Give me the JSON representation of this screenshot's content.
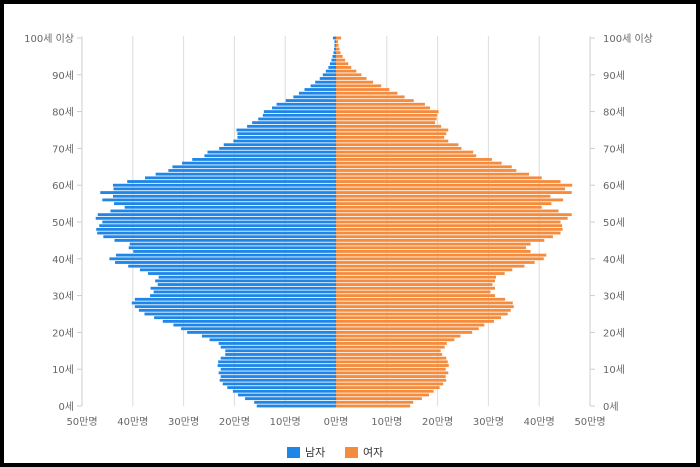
{
  "chart_data": {
    "type": "bar",
    "orientation": "horizontal",
    "layout": "population-pyramid",
    "title": "",
    "xlabel": "",
    "ylabel": "",
    "xlim": [
      -50,
      50
    ],
    "x_unit_note": "values in 만명 (ten-thousands of people); male plotted to the left",
    "x_ticks": [
      -50,
      -40,
      -30,
      -20,
      -10,
      0,
      10,
      20,
      30,
      40,
      50
    ],
    "x_tick_labels": [
      "50만명",
      "40만명",
      "30만명",
      "20만명",
      "10만명",
      "0만명",
      "10만명",
      "20만명",
      "30만명",
      "40만명",
      "50만명"
    ],
    "y_ticks": [
      0,
      10,
      20,
      30,
      40,
      50,
      60,
      70,
      80,
      90,
      100
    ],
    "y_tick_labels": [
      "0세",
      "10세",
      "20세",
      "30세",
      "40세",
      "50세",
      "60세",
      "70세",
      "80세",
      "90세",
      "100세 이상"
    ],
    "grid": true,
    "legend_position": "bottom-center",
    "categories_note": "age 0 to 100 (100 = 100세 이상)",
    "series": [
      {
        "name": "남자",
        "color": "#1f86e8",
        "values": [
          15.6,
          16.1,
          17.9,
          19.3,
          20.3,
          21.4,
          22.3,
          22.9,
          22.7,
          23.1,
          22.7,
          23.3,
          23.2,
          22.7,
          21.8,
          21.8,
          22.7,
          23.1,
          24.9,
          26.4,
          29.3,
          30.5,
          32.0,
          34.1,
          35.8,
          37.7,
          38.8,
          39.6,
          40.2,
          39.6,
          36.6,
          35.9,
          36.5,
          35.1,
          35.6,
          34.9,
          37.0,
          38.6,
          40.9,
          43.5,
          44.6,
          43.3,
          39.9,
          40.8,
          40.6,
          43.6,
          45.8,
          47.0,
          47.2,
          46.6,
          46.0,
          47.3,
          46.9,
          44.4,
          41.6,
          43.7,
          46.0,
          43.9,
          46.4,
          43.8,
          43.9,
          41.1,
          37.6,
          35.5,
          33.0,
          32.2,
          30.3,
          28.3,
          25.9,
          25.3,
          23.0,
          22.1,
          20.2,
          19.4,
          19.4,
          19.6,
          17.5,
          16.5,
          15.3,
          14.4,
          14.2,
          12.6,
          11.7,
          9.9,
          8.4,
          7.3,
          6.2,
          5.0,
          4.1,
          3.2,
          2.6,
          2.0,
          1.5,
          1.2,
          0.9,
          0.7,
          0.5,
          0.4,
          0.3,
          0.3,
          0.6
        ]
      },
      {
        "name": "여자",
        "color": "#f58b3d",
        "values": [
          14.6,
          15.2,
          16.9,
          18.3,
          19.2,
          20.4,
          21.1,
          21.7,
          21.6,
          22.1,
          21.6,
          22.2,
          22.0,
          21.7,
          20.9,
          20.6,
          21.4,
          21.8,
          23.3,
          24.5,
          26.8,
          28.1,
          29.2,
          31.1,
          32.5,
          33.8,
          34.4,
          35.0,
          34.8,
          33.3,
          31.3,
          30.4,
          31.3,
          30.8,
          31.3,
          31.5,
          33.2,
          34.7,
          37.1,
          39.1,
          40.9,
          41.4,
          38.3,
          37.4,
          38.3,
          41.0,
          42.7,
          44.2,
          44.6,
          44.5,
          44.2,
          45.6,
          46.4,
          43.8,
          40.5,
          42.4,
          44.7,
          42.2,
          46.4,
          45.1,
          46.5,
          44.2,
          40.5,
          38.0,
          35.5,
          34.6,
          32.6,
          30.7,
          27.6,
          27.0,
          24.7,
          24.1,
          22.1,
          21.3,
          21.7,
          22.1,
          20.7,
          19.5,
          19.8,
          19.9,
          20.2,
          18.5,
          17.5,
          15.3,
          13.5,
          12.1,
          10.5,
          8.9,
          7.3,
          6.0,
          5.0,
          4.0,
          3.0,
          2.4,
          1.8,
          1.3,
          0.9,
          0.7,
          0.5,
          0.4,
          1.0
        ]
      }
    ]
  }
}
